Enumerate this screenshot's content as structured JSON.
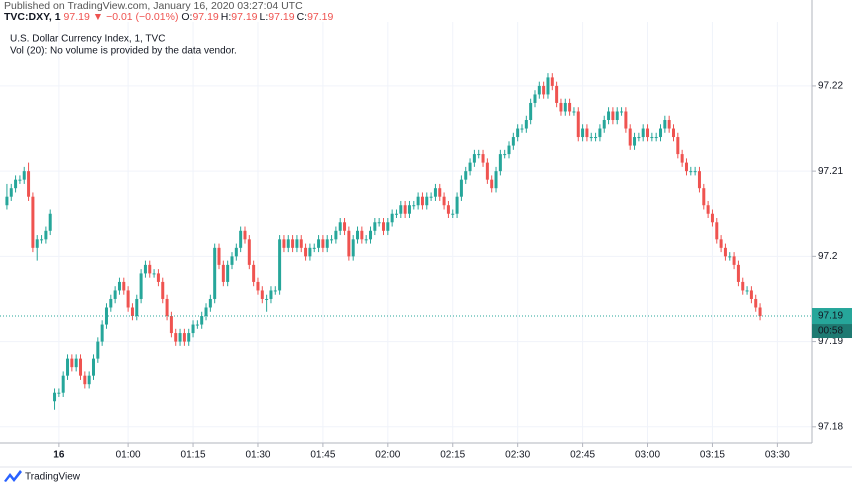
{
  "chart_data": {
    "type": "candlestick",
    "published": "Published on TradingView.com, January 16, 2020 03:27:04 UTC",
    "symbol": "TVC:DXY, 1",
    "symbol_price": "97.19",
    "change_arrow": "▼",
    "change": "−0.01 (−0.01%)",
    "ohlc_labels": [
      "O:",
      "H:",
      "L:",
      "C:"
    ],
    "ohlc_values": [
      "97.19",
      "97.19",
      "97.19",
      "97.19"
    ],
    "title": "U.S. Dollar Currency Index, 1, TVC",
    "subtitle": "Vol (20): No volume is provided by the data vendor.",
    "last_price": {
      "value": 97.193,
      "label": "97.19"
    },
    "countdown": "00:58",
    "footer": "TradingView",
    "up_color": "#26a69a",
    "down_color": "#ef5350",
    "grid": true,
    "ylim": [
      97.1781,
      97.2275
    ],
    "yticks": [
      97.18,
      97.19,
      97.2,
      97.21,
      97.22
    ],
    "xlim": [
      30.4,
      218
    ],
    "xticks": [
      {
        "value": 44,
        "label": "16"
      },
      {
        "value": 60,
        "label": "01:00"
      },
      {
        "value": 75,
        "label": "01:15"
      },
      {
        "value": 90,
        "label": "01:30"
      },
      {
        "value": 105,
        "label": "01:45"
      },
      {
        "value": 120,
        "label": "02:00"
      },
      {
        "value": 135,
        "label": "02:15"
      },
      {
        "value": 150,
        "label": "02:30"
      },
      {
        "value": 165,
        "label": "02:45"
      },
      {
        "value": 180,
        "label": "03:00"
      },
      {
        "value": 195,
        "label": "03:15"
      },
      {
        "value": 210,
        "label": "03:30"
      }
    ],
    "x": [
      32,
      33,
      34,
      35,
      36,
      37,
      38,
      39,
      40,
      41,
      42,
      43,
      44,
      45,
      46,
      47,
      48,
      49,
      50,
      51,
      52,
      53,
      54,
      55,
      56,
      57,
      58,
      59,
      60,
      61,
      62,
      63,
      64,
      65,
      66,
      67,
      68,
      69,
      70,
      71,
      72,
      73,
      74,
      75,
      76,
      77,
      78,
      79,
      80,
      81,
      82,
      83,
      84,
      85,
      86,
      87,
      88,
      89,
      90,
      91,
      92,
      93,
      94,
      95,
      96,
      97,
      98,
      99,
      100,
      101,
      102,
      103,
      104,
      105,
      106,
      107,
      108,
      109,
      110,
      111,
      112,
      113,
      114,
      115,
      116,
      117,
      118,
      119,
      120,
      121,
      122,
      123,
      124,
      125,
      126,
      127,
      128,
      129,
      130,
      131,
      132,
      133,
      134,
      135,
      136,
      137,
      138,
      139,
      140,
      141,
      142,
      143,
      144,
      145,
      146,
      147,
      148,
      149,
      150,
      151,
      152,
      153,
      154,
      155,
      156,
      157,
      158,
      159,
      160,
      161,
      162,
      163,
      164,
      165,
      166,
      167,
      168,
      169,
      170,
      171,
      172,
      173,
      174,
      175,
      176,
      177,
      178,
      179,
      180,
      181,
      182,
      183,
      184,
      185,
      186,
      187,
      188,
      189,
      190,
      191,
      192,
      193,
      194,
      195,
      196,
      197,
      198,
      199,
      200,
      201,
      202,
      203,
      204,
      205,
      206
    ],
    "ohlc": [
      [
        97.206,
        97.2085,
        97.2055,
        97.207
      ],
      [
        97.207,
        97.2085,
        97.2065,
        97.208
      ],
      [
        97.208,
        97.2095,
        97.2075,
        97.209
      ],
      [
        97.209,
        97.2095,
        97.2085,
        97.209
      ],
      [
        97.209,
        97.2105,
        97.2085,
        97.21
      ],
      [
        97.21,
        97.211,
        97.2065,
        97.207
      ],
      [
        97.207,
        97.2075,
        97.2005,
        97.201
      ],
      [
        97.201,
        97.2025,
        97.1995,
        97.202
      ],
      [
        97.202,
        97.2025,
        97.2015,
        97.202
      ],
      [
        97.202,
        97.2035,
        97.2015,
        97.203
      ],
      [
        97.203,
        97.2055,
        97.2025,
        97.205
      ],
      [
        97.183,
        97.1845,
        97.182,
        97.184
      ],
      [
        97.184,
        97.1845,
        97.1835,
        97.184
      ],
      [
        97.184,
        97.1865,
        97.1835,
        97.186
      ],
      [
        97.186,
        97.1885,
        97.1855,
        97.188
      ],
      [
        97.188,
        97.1885,
        97.1865,
        97.187
      ],
      [
        97.187,
        97.1885,
        97.1865,
        97.188
      ],
      [
        97.188,
        97.1885,
        97.1855,
        97.186
      ],
      [
        97.186,
        97.1865,
        97.1845,
        97.185
      ],
      [
        97.185,
        97.1865,
        97.1845,
        97.186
      ],
      [
        97.186,
        97.1885,
        97.1855,
        97.188
      ],
      [
        97.188,
        97.1905,
        97.1875,
        97.19
      ],
      [
        97.19,
        97.1925,
        97.1895,
        97.192
      ],
      [
        97.192,
        97.1945,
        97.1915,
        97.194
      ],
      [
        97.194,
        97.1955,
        97.1935,
        97.195
      ],
      [
        97.195,
        97.1965,
        97.1945,
        97.196
      ],
      [
        97.196,
        97.1975,
        97.1955,
        97.197
      ],
      [
        97.197,
        97.1975,
        97.1955,
        97.196
      ],
      [
        97.196,
        97.1965,
        97.1935,
        97.194
      ],
      [
        97.194,
        97.1945,
        97.1925,
        97.193
      ],
      [
        97.193,
        97.1955,
        97.1925,
        97.195
      ],
      [
        97.195,
        97.1985,
        97.1945,
        97.198
      ],
      [
        97.198,
        97.1995,
        97.1975,
        97.199
      ],
      [
        97.199,
        97.1995,
        97.1975,
        97.198
      ],
      [
        97.198,
        97.1985,
        97.1975,
        97.198
      ],
      [
        97.198,
        97.1985,
        97.1965,
        97.197
      ],
      [
        97.197,
        97.1975,
        97.1945,
        97.195
      ],
      [
        97.195,
        97.1955,
        97.1925,
        97.193
      ],
      [
        97.193,
        97.1935,
        97.1905,
        97.191
      ],
      [
        97.191,
        97.1915,
        97.1895,
        97.19
      ],
      [
        97.19,
        97.1915,
        97.1895,
        97.191
      ],
      [
        97.191,
        97.1915,
        97.1895,
        97.19
      ],
      [
        97.19,
        97.1915,
        97.1895,
        97.191
      ],
      [
        97.191,
        97.1925,
        97.1905,
        97.192
      ],
      [
        97.192,
        97.1925,
        97.1915,
        97.192
      ],
      [
        97.192,
        97.1935,
        97.1915,
        97.193
      ],
      [
        97.193,
        97.1945,
        97.1925,
        97.194
      ],
      [
        97.194,
        97.1955,
        97.1935,
        97.195
      ],
      [
        97.195,
        97.2015,
        97.1945,
        97.201
      ],
      [
        97.201,
        97.2015,
        97.1985,
        97.199
      ],
      [
        97.199,
        97.1995,
        97.1965,
        97.197
      ],
      [
        97.197,
        97.1995,
        97.1965,
        97.199
      ],
      [
        97.199,
        97.2005,
        97.1985,
        97.2
      ],
      [
        97.2,
        97.2015,
        97.1995,
        97.201
      ],
      [
        97.201,
        97.2035,
        97.2005,
        97.203
      ],
      [
        97.203,
        97.2035,
        97.2015,
        97.202
      ],
      [
        97.202,
        97.2025,
        97.1985,
        97.199
      ],
      [
        97.199,
        97.1995,
        97.1965,
        97.197
      ],
      [
        97.197,
        97.1975,
        97.1955,
        97.196
      ],
      [
        97.196,
        97.1965,
        97.1945,
        97.195
      ],
      [
        97.195,
        97.1955,
        97.1935,
        97.195
      ],
      [
        97.195,
        97.1965,
        97.1945,
        97.196
      ],
      [
        97.196,
        97.1965,
        97.1955,
        97.196
      ],
      [
        97.196,
        97.2025,
        97.1955,
        97.202
      ],
      [
        97.202,
        97.2025,
        97.2005,
        97.201
      ],
      [
        97.201,
        97.2025,
        97.2005,
        97.202
      ],
      [
        97.202,
        97.2025,
        97.2005,
        97.201
      ],
      [
        97.201,
        97.2025,
        97.2005,
        97.202
      ],
      [
        97.202,
        97.2025,
        97.2005,
        97.201
      ],
      [
        97.201,
        97.2015,
        97.1995,
        97.2
      ],
      [
        97.2,
        97.2015,
        97.1995,
        97.201
      ],
      [
        97.201,
        97.2015,
        97.2005,
        97.201
      ],
      [
        97.201,
        97.2025,
        97.2005,
        97.202
      ],
      [
        97.202,
        97.2025,
        97.2005,
        97.201
      ],
      [
        97.201,
        97.2025,
        97.2005,
        97.202
      ],
      [
        97.202,
        97.2025,
        97.2015,
        97.202
      ],
      [
        97.202,
        97.2035,
        97.2015,
        97.203
      ],
      [
        97.203,
        97.2045,
        97.2025,
        97.204
      ],
      [
        97.204,
        97.2045,
        97.2025,
        97.203
      ],
      [
        97.203,
        97.2035,
        97.1995,
        97.2
      ],
      [
        97.2,
        97.2025,
        97.1995,
        97.202
      ],
      [
        97.202,
        97.2035,
        97.2015,
        97.203
      ],
      [
        97.203,
        97.2035,
        97.2015,
        97.202
      ],
      [
        97.202,
        97.2025,
        97.2015,
        97.202
      ],
      [
        97.202,
        97.2035,
        97.2015,
        97.203
      ],
      [
        97.203,
        97.2045,
        97.2025,
        97.204
      ],
      [
        97.204,
        97.2045,
        97.2035,
        97.204
      ],
      [
        97.204,
        97.2045,
        97.2025,
        97.203
      ],
      [
        97.203,
        97.2045,
        97.2025,
        97.204
      ],
      [
        97.204,
        97.2055,
        97.2035,
        97.205
      ],
      [
        97.205,
        97.2055,
        97.2045,
        97.205
      ],
      [
        97.205,
        97.2065,
        97.2045,
        97.206
      ],
      [
        97.206,
        97.2065,
        97.2045,
        97.205
      ],
      [
        97.205,
        97.2065,
        97.2045,
        97.206
      ],
      [
        97.206,
        97.2065,
        97.2055,
        97.206
      ],
      [
        97.206,
        97.2075,
        97.2055,
        97.207
      ],
      [
        97.207,
        97.2075,
        97.2055,
        97.206
      ],
      [
        97.206,
        97.2075,
        97.2055,
        97.207
      ],
      [
        97.207,
        97.2075,
        97.2065,
        97.207
      ],
      [
        97.207,
        97.2085,
        97.2065,
        97.208
      ],
      [
        97.208,
        97.2085,
        97.2065,
        97.207
      ],
      [
        97.207,
        97.2075,
        97.2055,
        97.206
      ],
      [
        97.206,
        97.2065,
        97.2045,
        97.205
      ],
      [
        97.205,
        97.2055,
        97.2045,
        97.205
      ],
      [
        97.205,
        97.2075,
        97.2045,
        97.207
      ],
      [
        97.207,
        97.2095,
        97.2065,
        97.209
      ],
      [
        97.209,
        97.2105,
        97.2085,
        97.21
      ],
      [
        97.21,
        97.2115,
        97.2095,
        97.211
      ],
      [
        97.211,
        97.2125,
        97.2105,
        97.212
      ],
      [
        97.212,
        97.2125,
        97.2115,
        97.212
      ],
      [
        97.212,
        97.2125,
        97.2105,
        97.211
      ],
      [
        97.211,
        97.2115,
        97.2085,
        97.209
      ],
      [
        97.209,
        97.2095,
        97.2075,
        97.208
      ],
      [
        97.208,
        97.2105,
        97.2075,
        97.21
      ],
      [
        97.21,
        97.2125,
        97.2095,
        97.212
      ],
      [
        97.212,
        97.2125,
        97.2115,
        97.212
      ],
      [
        97.212,
        97.2135,
        97.2115,
        97.213
      ],
      [
        97.213,
        97.2145,
        97.2125,
        97.214
      ],
      [
        97.214,
        97.2155,
        97.2135,
        97.215
      ],
      [
        97.215,
        97.2155,
        97.2145,
        97.215
      ],
      [
        97.215,
        97.2165,
        97.2145,
        97.216
      ],
      [
        97.216,
        97.2185,
        97.2155,
        97.218
      ],
      [
        97.218,
        97.2195,
        97.2175,
        97.219
      ],
      [
        97.219,
        97.2205,
        97.2185,
        97.22
      ],
      [
        97.22,
        97.2205,
        97.2185,
        97.219
      ],
      [
        97.219,
        97.2215,
        97.2185,
        97.221
      ],
      [
        97.221,
        97.2215,
        97.2195,
        97.22
      ],
      [
        97.22,
        97.2205,
        97.2175,
        97.218
      ],
      [
        97.218,
        97.2185,
        97.2165,
        97.217
      ],
      [
        97.217,
        97.2185,
        97.2165,
        97.218
      ],
      [
        97.218,
        97.2185,
        97.2165,
        97.217
      ],
      [
        97.217,
        97.2175,
        97.2165,
        97.217
      ],
      [
        97.217,
        97.2175,
        97.2135,
        97.214
      ],
      [
        97.214,
        97.2155,
        97.2135,
        97.215
      ],
      [
        97.215,
        97.2155,
        97.2135,
        97.214
      ],
      [
        97.214,
        97.2145,
        97.2135,
        97.214
      ],
      [
        97.214,
        97.2145,
        97.2135,
        97.214
      ],
      [
        97.214,
        97.2155,
        97.2135,
        97.215
      ],
      [
        97.215,
        97.2165,
        97.2145,
        97.216
      ],
      [
        97.216,
        97.2175,
        97.2155,
        97.217
      ],
      [
        97.217,
        97.2175,
        97.2155,
        97.216
      ],
      [
        97.216,
        97.2175,
        97.2155,
        97.217
      ],
      [
        97.217,
        97.2175,
        97.2165,
        97.217
      ],
      [
        97.217,
        97.2175,
        97.2145,
        97.215
      ],
      [
        97.215,
        97.2155,
        97.2125,
        97.213
      ],
      [
        97.213,
        97.2145,
        97.2125,
        97.214
      ],
      [
        97.214,
        97.2145,
        97.2135,
        97.214
      ],
      [
        97.214,
        97.2155,
        97.2135,
        97.215
      ],
      [
        97.215,
        97.2155,
        97.2135,
        97.214
      ],
      [
        97.214,
        97.2145,
        97.2135,
        97.214
      ],
      [
        97.214,
        97.2145,
        97.2135,
        97.214
      ],
      [
        97.214,
        97.2155,
        97.2135,
        97.215
      ],
      [
        97.215,
        97.2165,
        97.2145,
        97.216
      ],
      [
        97.216,
        97.2165,
        97.2145,
        97.215
      ],
      [
        97.215,
        97.2155,
        97.2135,
        97.214
      ],
      [
        97.214,
        97.2145,
        97.2115,
        97.212
      ],
      [
        97.212,
        97.2125,
        97.2105,
        97.211
      ],
      [
        97.211,
        97.2115,
        97.2095,
        97.21
      ],
      [
        97.21,
        97.2105,
        97.2095,
        97.21
      ],
      [
        97.21,
        97.2105,
        97.2095,
        97.21
      ],
      [
        97.21,
        97.2105,
        97.2075,
        97.208
      ],
      [
        97.208,
        97.2085,
        97.2055,
        97.206
      ],
      [
        97.206,
        97.2065,
        97.2045,
        97.205
      ],
      [
        97.205,
        97.2055,
        97.2035,
        97.204
      ],
      [
        97.204,
        97.2045,
        97.2015,
        97.202
      ],
      [
        97.202,
        97.2025,
        97.2005,
        97.201
      ],
      [
        97.201,
        97.2015,
        97.1995,
        97.2
      ],
      [
        97.2,
        97.2005,
        97.1995,
        97.2
      ],
      [
        97.2,
        97.2005,
        97.1985,
        97.199
      ],
      [
        97.199,
        97.1995,
        97.1965,
        97.197
      ],
      [
        97.197,
        97.1975,
        97.1955,
        97.196
      ],
      [
        97.196,
        97.1965,
        97.1955,
        97.196
      ],
      [
        97.196,
        97.1965,
        97.1945,
        97.195
      ],
      [
        97.195,
        97.1955,
        97.1935,
        97.194
      ],
      [
        97.194,
        97.1945,
        97.1925,
        97.193
      ]
    ]
  }
}
